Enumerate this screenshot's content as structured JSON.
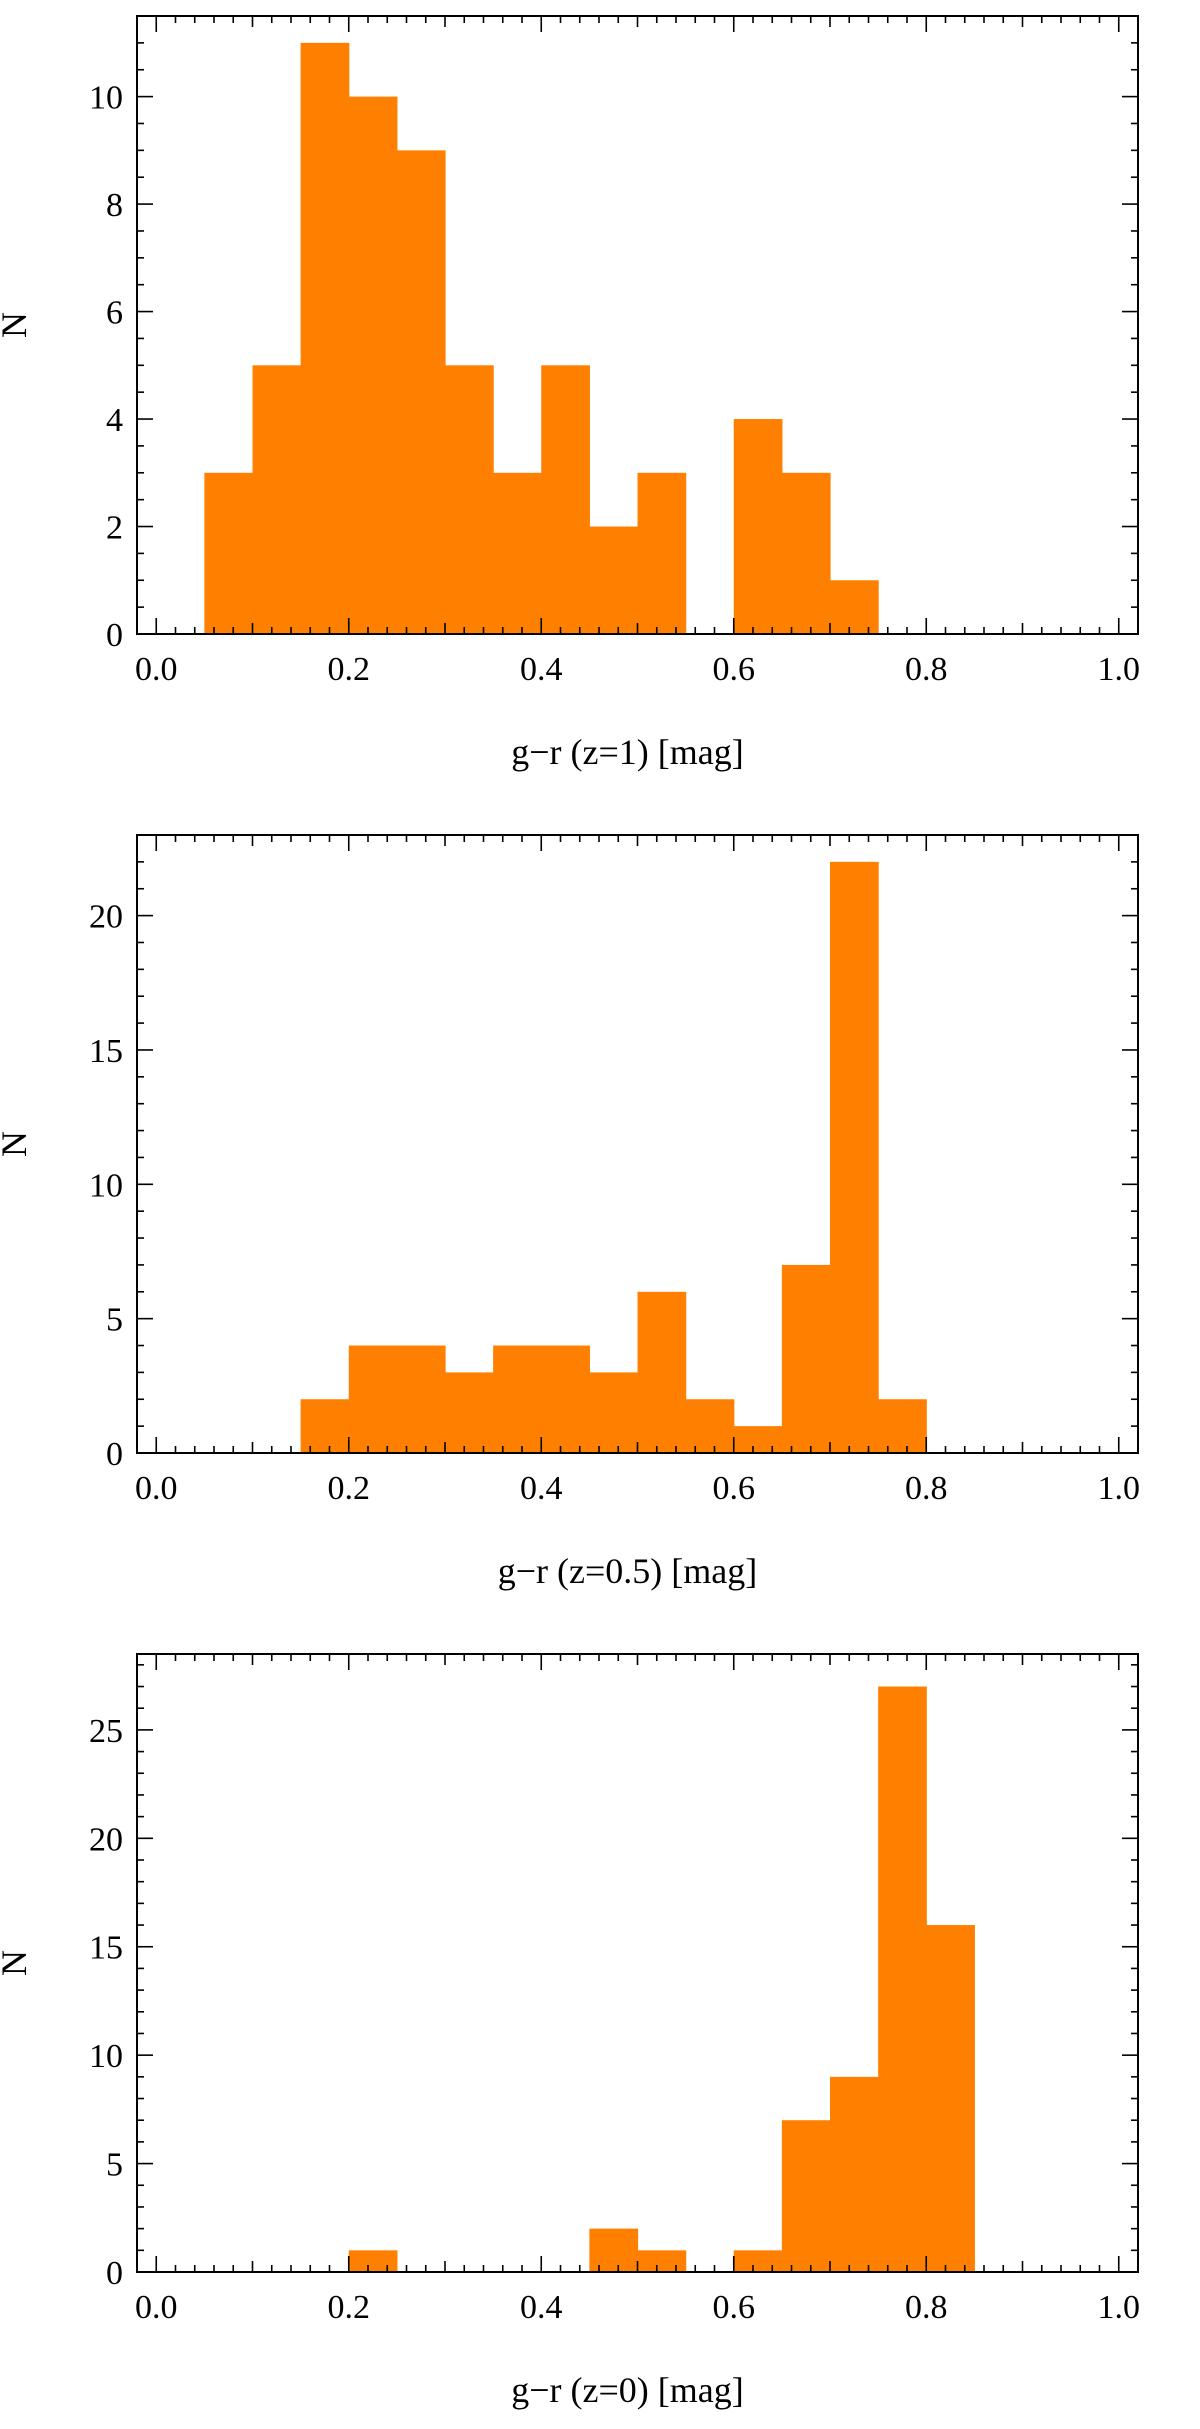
{
  "chart_data": [
    {
      "type": "bar",
      "title": "",
      "xlabel": "g−r (z=1) [mag]",
      "ylabel": "N",
      "bin_width": 0.05,
      "bins": [
        {
          "x0": 0.05,
          "count": 3
        },
        {
          "x0": 0.1,
          "count": 5
        },
        {
          "x0": 0.15,
          "count": 11
        },
        {
          "x0": 0.2,
          "count": 10
        },
        {
          "x0": 0.25,
          "count": 9
        },
        {
          "x0": 0.3,
          "count": 5
        },
        {
          "x0": 0.35,
          "count": 3
        },
        {
          "x0": 0.4,
          "count": 5
        },
        {
          "x0": 0.45,
          "count": 2
        },
        {
          "x0": 0.5,
          "count": 3
        },
        {
          "x0": 0.6,
          "count": 4
        },
        {
          "x0": 0.65,
          "count": 3
        },
        {
          "x0": 0.7,
          "count": 1
        }
      ],
      "xlim": [
        -0.02,
        1.02
      ],
      "ylim": [
        0,
        11.5
      ],
      "xticks": [
        0.0,
        0.2,
        0.4,
        0.6,
        0.8,
        1.0
      ],
      "xtick_labels": [
        "0.0",
        "0.2",
        "0.4",
        "0.6",
        "0.8",
        "1.0"
      ],
      "yticks": [
        0,
        2,
        4,
        6,
        8,
        10
      ],
      "ytick_labels": [
        "0",
        "2",
        "4",
        "6",
        "8",
        "10"
      ],
      "ymin_tick_step": 0.5,
      "color": "#FF8000"
    },
    {
      "type": "bar",
      "title": "",
      "xlabel": "g−r (z=0.5) [mag]",
      "ylabel": "N",
      "bin_width": 0.05,
      "bins": [
        {
          "x0": 0.15,
          "count": 2
        },
        {
          "x0": 0.2,
          "count": 4
        },
        {
          "x0": 0.25,
          "count": 4
        },
        {
          "x0": 0.3,
          "count": 3
        },
        {
          "x0": 0.35,
          "count": 4
        },
        {
          "x0": 0.4,
          "count": 4
        },
        {
          "x0": 0.45,
          "count": 3
        },
        {
          "x0": 0.5,
          "count": 6
        },
        {
          "x0": 0.55,
          "count": 2
        },
        {
          "x0": 0.6,
          "count": 1
        },
        {
          "x0": 0.65,
          "count": 7
        },
        {
          "x0": 0.7,
          "count": 22
        },
        {
          "x0": 0.75,
          "count": 2
        }
      ],
      "xlim": [
        -0.02,
        1.02
      ],
      "ylim": [
        0,
        23
      ],
      "xticks": [
        0.0,
        0.2,
        0.4,
        0.6,
        0.8,
        1.0
      ],
      "xtick_labels": [
        "0.0",
        "0.2",
        "0.4",
        "0.6",
        "0.8",
        "1.0"
      ],
      "yticks": [
        0,
        5,
        10,
        15,
        20
      ],
      "ytick_labels": [
        "0",
        "5",
        "10",
        "15",
        "20"
      ],
      "ymin_tick_step": 1,
      "color": "#FF8000"
    },
    {
      "type": "bar",
      "title": "",
      "xlabel": "g−r (z=0) [mag]",
      "ylabel": "N",
      "bin_width": 0.05,
      "bins": [
        {
          "x0": 0.2,
          "count": 1
        },
        {
          "x0": 0.45,
          "count": 2
        },
        {
          "x0": 0.5,
          "count": 1
        },
        {
          "x0": 0.6,
          "count": 1
        },
        {
          "x0": 0.65,
          "count": 7
        },
        {
          "x0": 0.7,
          "count": 9
        },
        {
          "x0": 0.75,
          "count": 27
        },
        {
          "x0": 0.8,
          "count": 16
        }
      ],
      "xlim": [
        -0.02,
        1.02
      ],
      "ylim": [
        0,
        28.5
      ],
      "xticks": [
        0.0,
        0.2,
        0.4,
        0.6,
        0.8,
        1.0
      ],
      "xtick_labels": [
        "0.0",
        "0.2",
        "0.4",
        "0.6",
        "0.8",
        "1.0"
      ],
      "yticks": [
        0,
        5,
        10,
        15,
        20,
        25
      ],
      "ytick_labels": [
        "0",
        "5",
        "10",
        "15",
        "20",
        "25"
      ],
      "ymin_tick_step": 1,
      "color": "#FF8000"
    }
  ]
}
